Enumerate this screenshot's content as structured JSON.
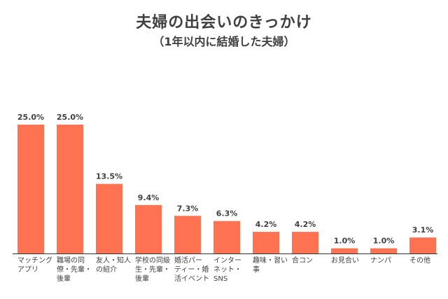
{
  "chart_data": {
    "type": "bar",
    "title": "夫婦の出会いのきっかけ",
    "subtitle": "（1年以内に結婚した夫婦）",
    "categories": [
      [
        "マッチング",
        "アプリ"
      ],
      [
        "職場の同",
        "僚・先輩・",
        "後輩"
      ],
      [
        "友人・知人",
        "の紹介"
      ],
      [
        "学校の同級",
        "生・先輩・",
        "後輩"
      ],
      [
        "婚活パー",
        "ティー・婚",
        "活イベント"
      ],
      [
        "インター",
        "ネット・",
        "SNS"
      ],
      [
        "趣味・習い",
        "事"
      ],
      [
        "合コン"
      ],
      [
        "お見合い"
      ],
      [
        "ナンパ"
      ],
      [
        "その他"
      ]
    ],
    "values": [
      25.0,
      25.0,
      13.5,
      9.4,
      7.3,
      6.3,
      4.2,
      4.2,
      1.0,
      1.0,
      3.1
    ],
    "value_labels": [
      "25.0%",
      "25.0%",
      "13.5%",
      "9.4%",
      "7.3%",
      "6.3%",
      "4.2%",
      "4.2%",
      "1.0%",
      "1.0%",
      "3.1%"
    ],
    "ylim": [
      0,
      25
    ],
    "grid": false,
    "bar_color": "#ff7352",
    "axis_color": "#333333"
  }
}
